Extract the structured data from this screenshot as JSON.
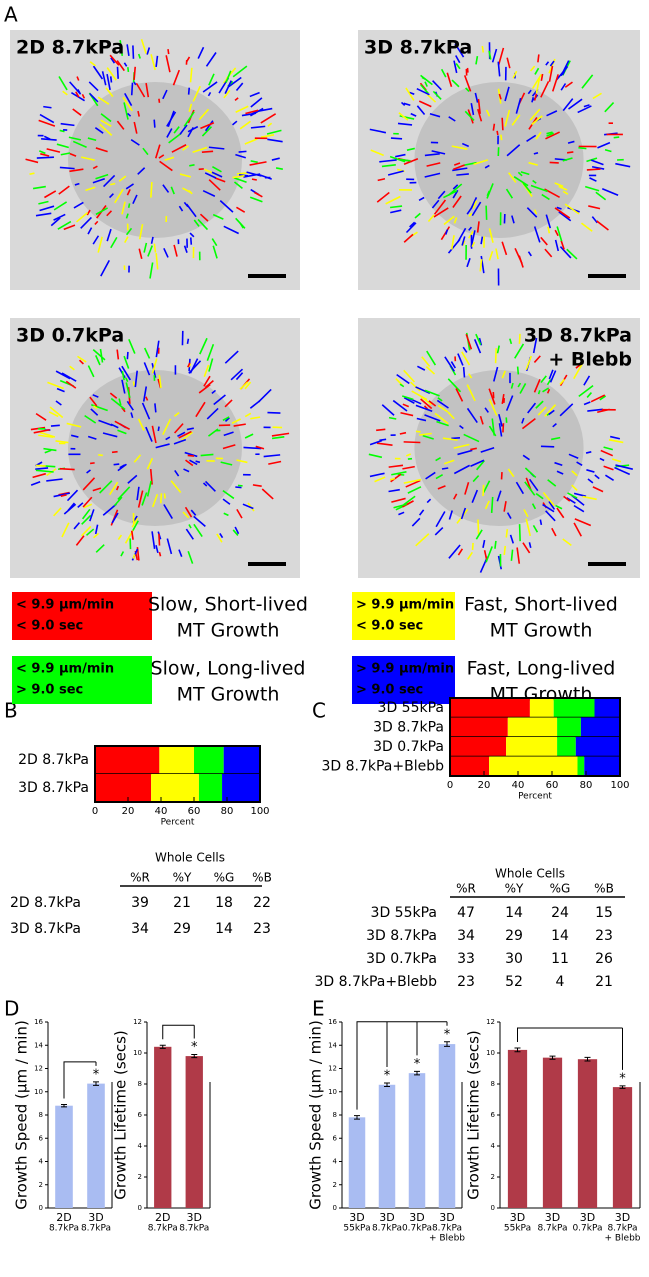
{
  "panel_labels": [
    "A",
    "B",
    "C",
    "D",
    "E"
  ],
  "images": [
    {
      "label": [
        "2D 8.7kPa"
      ]
    },
    {
      "label": [
        "3D 8.7kPa"
      ]
    },
    {
      "label": [
        "3D 0.7kPa"
      ]
    },
    {
      "label": [
        "3D 8.7kPa",
        "+ Blebb"
      ]
    }
  ],
  "legend": [
    {
      "color": "#ff0000",
      "lines": [
        "< 9.9 µm/min",
        "< 9.0 sec"
      ],
      "description": [
        "Slow, Short-lived",
        "MT Growth"
      ]
    },
    {
      "color": "#ffff00",
      "lines": [
        "> 9.9 µm/min",
        "< 9.0 sec"
      ],
      "description": [
        "Fast, Short-lived",
        "MT Growth"
      ]
    },
    {
      "color": "#00ff00",
      "lines": [
        "< 9.9 µm/min",
        "> 9.0 sec"
      ],
      "description": [
        "Slow, Long-lived",
        "MT Growth"
      ]
    },
    {
      "color": "#0000ff",
      "lines": [
        "> 9.9 µm/min",
        "> 9.0 sec"
      ],
      "description": [
        "Fast, Long-lived",
        "MT Growth"
      ]
    }
  ],
  "tables": [
    {
      "title": "Whole Cells",
      "columns": [
        "%R",
        "%Y",
        "%G",
        "%B"
      ],
      "rows": [
        {
          "label": "2D 8.7kPa",
          "values": [
            39,
            21,
            18,
            22
          ]
        },
        {
          "label": "3D 8.7kPa",
          "values": [
            34,
            29,
            14,
            23
          ]
        }
      ]
    },
    {
      "title": "Whole Cells",
      "columns": [
        "%R",
        "%Y",
        "%G",
        "%B"
      ],
      "rows": [
        {
          "label": "3D 55kPa",
          "values": [
            47,
            14,
            24,
            15
          ]
        },
        {
          "label": "3D 8.7kPa",
          "values": [
            34,
            29,
            14,
            23
          ]
        },
        {
          "label": "3D 0.7kPa",
          "values": [
            33,
            30,
            11,
            26
          ]
        },
        {
          "label": "3D 8.7kPa+Blebb",
          "values": [
            23,
            52,
            4,
            21
          ]
        }
      ]
    }
  ],
  "chart_data": [
    {
      "type": "stacked_bar",
      "categories": [
        "2D 8.7kPa",
        "3D 8.7kPa"
      ],
      "series": [
        {
          "color": "#ff0000",
          "values": [
            39,
            34
          ]
        },
        {
          "color": "#ffff00",
          "values": [
            21,
            29
          ]
        },
        {
          "color": "#00ff00",
          "values": [
            18,
            14
          ]
        },
        {
          "color": "#0000ff",
          "values": [
            22,
            23
          ]
        }
      ],
      "xlabel": "Percent",
      "xlim": [
        0,
        100
      ],
      "xticks": [
        0,
        20,
        40,
        60,
        80,
        100
      ]
    },
    {
      "type": "stacked_bar",
      "categories": [
        "3D 55kPa",
        "3D 8.7kPa",
        "3D 0.7kPa",
        "3D 8.7kPa+Blebb"
      ],
      "series": [
        {
          "color": "#ff0000",
          "values": [
            47,
            34,
            33,
            23
          ]
        },
        {
          "color": "#ffff00",
          "values": [
            14,
            29,
            30,
            52
          ]
        },
        {
          "color": "#00ff00",
          "values": [
            24,
            14,
            11,
            4
          ]
        },
        {
          "color": "#0000ff",
          "values": [
            15,
            23,
            26,
            21
          ]
        }
      ],
      "xlabel": "Percent",
      "xlim": [
        0,
        100
      ],
      "xticks": [
        0,
        20,
        40,
        60,
        80,
        100
      ]
    },
    {
      "type": "bar",
      "categories": [
        [
          "2D",
          "8.7kPa"
        ],
        [
          "3D",
          "8.7kPa"
        ]
      ],
      "values": [
        8.8,
        10.7
      ],
      "errors": [
        0.1,
        0.15
      ],
      "markers": [
        null,
        "*"
      ],
      "color": "#a9bcf2",
      "ylabel": "Growth Speed (µm / min)",
      "ylim": [
        0,
        16
      ],
      "yticks": [
        0,
        2,
        4,
        6,
        8,
        10,
        12,
        14,
        16
      ]
    },
    {
      "type": "bar",
      "categories": [
        [
          "2D",
          "8.7kPa"
        ],
        [
          "3D",
          "8.7kPa"
        ]
      ],
      "values": [
        10.4,
        9.8
      ],
      "errors": [
        0.1,
        0.1
      ],
      "markers": [
        null,
        "*"
      ],
      "color": "#b03a48",
      "ylabel": "Growth Lifetime (secs)",
      "ylim": [
        0,
        12
      ],
      "yticks": [
        0,
        2,
        4,
        6,
        8,
        10,
        12
      ]
    },
    {
      "type": "bar",
      "categories": [
        [
          "3D",
          "55kPa"
        ],
        [
          "3D",
          "8.7kPa"
        ],
        [
          "3D",
          "0.7kPa"
        ],
        [
          "3D",
          "8.7kPa",
          "+ Blebb"
        ]
      ],
      "values": [
        7.8,
        10.6,
        11.6,
        14.1
      ],
      "errors": [
        0.15,
        0.15,
        0.15,
        0.2
      ],
      "markers": [
        null,
        "*",
        "*",
        "*"
      ],
      "color": "#a9bcf2",
      "ylabel": "Growth Speed (µm / min)",
      "ylim": [
        0,
        16
      ],
      "yticks": [
        0,
        2,
        4,
        6,
        8,
        10,
        12,
        14,
        16
      ]
    },
    {
      "type": "bar",
      "categories": [
        [
          "3D",
          "55kPa"
        ],
        [
          "3D",
          "8.7kPa"
        ],
        [
          "3D",
          "0.7kPa"
        ],
        [
          "3D",
          "8.7kPa",
          "+ Blebb"
        ]
      ],
      "values": [
        10.2,
        9.7,
        9.6,
        7.8
      ],
      "errors": [
        0.12,
        0.1,
        0.12,
        0.08
      ],
      "markers": [
        null,
        null,
        null,
        "*"
      ],
      "color": "#b03a48",
      "ylabel": "Growth Lifetime (secs)",
      "ylim": [
        0,
        12
      ],
      "yticks": [
        0,
        2,
        4,
        6,
        8,
        10,
        12
      ]
    }
  ]
}
